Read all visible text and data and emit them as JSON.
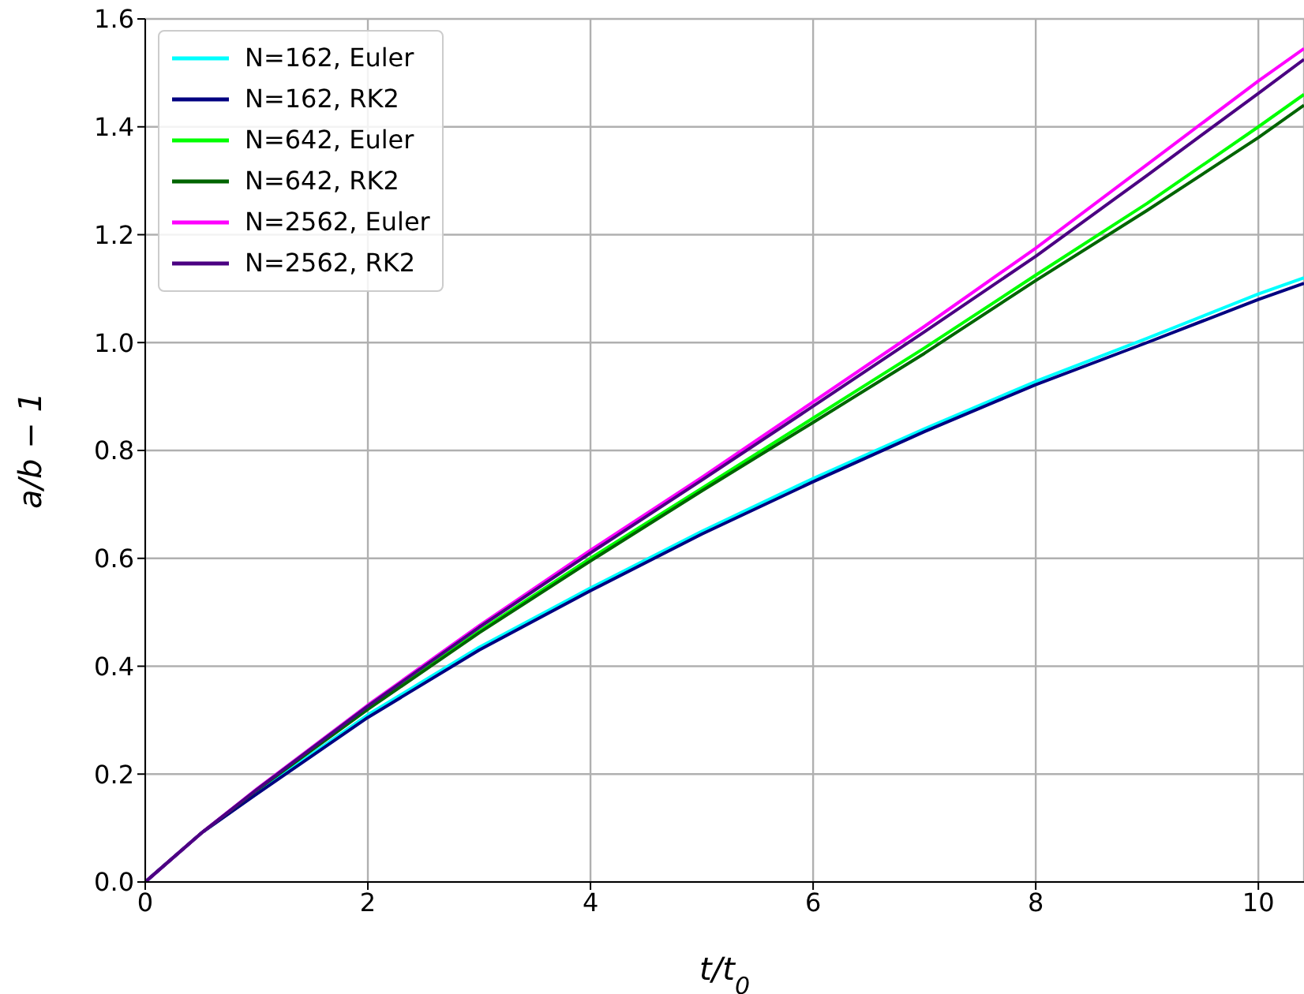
{
  "chart_data": {
    "type": "line",
    "xlabel": "t/t$_{0}$",
    "ylabel": "a/b − 1",
    "x": [
      0,
      0.5,
      1,
      2,
      3,
      4,
      5,
      6,
      7,
      8,
      9,
      10,
      10.41
    ],
    "series": [
      {
        "name": "N=162, Euler",
        "color": "#00ffff",
        "values": [
          0,
          0.09,
          0.165,
          0.31,
          0.435,
          0.545,
          0.65,
          0.748,
          0.84,
          0.928,
          1.008,
          1.09,
          1.12
        ]
      },
      {
        "name": "N=162, RK2",
        "color": "#000080",
        "values": [
          0,
          0.09,
          0.163,
          0.305,
          0.43,
          0.54,
          0.645,
          0.742,
          0.835,
          0.922,
          1.0,
          1.08,
          1.11
        ]
      },
      {
        "name": "N=642, Euler",
        "color": "#00ff00",
        "values": [
          null,
          null,
          null,
          0.322,
          0.465,
          0.6,
          0.73,
          0.86,
          0.99,
          1.125,
          1.258,
          1.4,
          1.46
        ]
      },
      {
        "name": "N=642, RK2",
        "color": "#006400",
        "values": [
          0,
          0.09,
          0.17,
          0.32,
          0.462,
          0.595,
          0.725,
          0.852,
          0.98,
          1.115,
          1.245,
          1.38,
          1.44
        ]
      },
      {
        "name": "N=2562, Euler",
        "color": "#ff00ff",
        "values": [
          0,
          0.09,
          0.172,
          0.328,
          0.475,
          0.615,
          0.75,
          0.89,
          1.03,
          1.175,
          1.33,
          1.485,
          1.545
        ]
      },
      {
        "name": "N=2562, RK2",
        "color": "#4b0082",
        "values": [
          0,
          0.09,
          0.171,
          0.326,
          0.472,
          0.61,
          0.745,
          0.882,
          1.02,
          1.16,
          1.31,
          1.462,
          1.525
        ]
      }
    ],
    "xlim": [
      0,
      10.41
    ],
    "xticks": [
      0,
      2,
      4,
      6,
      8,
      10
    ],
    "ylim": [
      0,
      1.6
    ],
    "yticks": [
      {
        "value": 0,
        "label": "0.0"
      },
      0.2,
      0.4,
      0.6,
      0.8,
      {
        "value": 1,
        "label": "1.0"
      },
      1.2,
      1.4,
      1.6
    ],
    "grid": true,
    "legend": "top left",
    "marker": "none",
    "line_style": "solid"
  }
}
